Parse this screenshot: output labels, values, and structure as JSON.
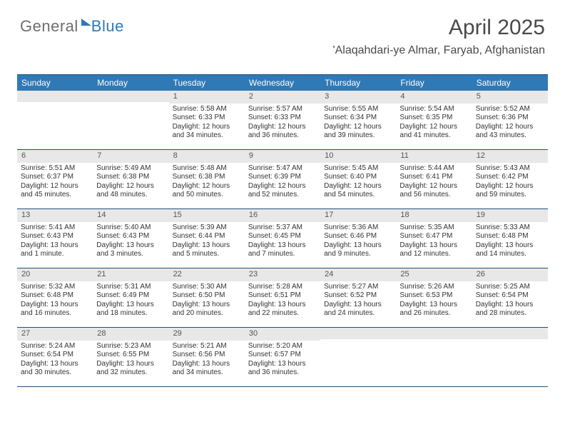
{
  "logo": {
    "part1": "General",
    "part2": "Blue"
  },
  "title": {
    "month_year": "April 2025",
    "location": "'Alaqahdari-ye Almar, Faryab, Afghanistan"
  },
  "calendar": {
    "header_bg": "#2f79b6",
    "header_fg": "#ffffff",
    "daynum_bg": "#e8e8e8",
    "border_color": "#1f4f7a",
    "weekdays": [
      "Sunday",
      "Monday",
      "Tuesday",
      "Wednesday",
      "Thursday",
      "Friday",
      "Saturday"
    ],
    "weeks": [
      [
        {
          "blank": true
        },
        {
          "blank": true
        },
        {
          "day": "1",
          "sunrise": "Sunrise: 5:58 AM",
          "sunset": "Sunset: 6:33 PM",
          "daylight1": "Daylight: 12 hours",
          "daylight2": "and 34 minutes."
        },
        {
          "day": "2",
          "sunrise": "Sunrise: 5:57 AM",
          "sunset": "Sunset: 6:33 PM",
          "daylight1": "Daylight: 12 hours",
          "daylight2": "and 36 minutes."
        },
        {
          "day": "3",
          "sunrise": "Sunrise: 5:55 AM",
          "sunset": "Sunset: 6:34 PM",
          "daylight1": "Daylight: 12 hours",
          "daylight2": "and 39 minutes."
        },
        {
          "day": "4",
          "sunrise": "Sunrise: 5:54 AM",
          "sunset": "Sunset: 6:35 PM",
          "daylight1": "Daylight: 12 hours",
          "daylight2": "and 41 minutes."
        },
        {
          "day": "5",
          "sunrise": "Sunrise: 5:52 AM",
          "sunset": "Sunset: 6:36 PM",
          "daylight1": "Daylight: 12 hours",
          "daylight2": "and 43 minutes."
        }
      ],
      [
        {
          "day": "6",
          "sunrise": "Sunrise: 5:51 AM",
          "sunset": "Sunset: 6:37 PM",
          "daylight1": "Daylight: 12 hours",
          "daylight2": "and 45 minutes."
        },
        {
          "day": "7",
          "sunrise": "Sunrise: 5:49 AM",
          "sunset": "Sunset: 6:38 PM",
          "daylight1": "Daylight: 12 hours",
          "daylight2": "and 48 minutes."
        },
        {
          "day": "8",
          "sunrise": "Sunrise: 5:48 AM",
          "sunset": "Sunset: 6:38 PM",
          "daylight1": "Daylight: 12 hours",
          "daylight2": "and 50 minutes."
        },
        {
          "day": "9",
          "sunrise": "Sunrise: 5:47 AM",
          "sunset": "Sunset: 6:39 PM",
          "daylight1": "Daylight: 12 hours",
          "daylight2": "and 52 minutes."
        },
        {
          "day": "10",
          "sunrise": "Sunrise: 5:45 AM",
          "sunset": "Sunset: 6:40 PM",
          "daylight1": "Daylight: 12 hours",
          "daylight2": "and 54 minutes."
        },
        {
          "day": "11",
          "sunrise": "Sunrise: 5:44 AM",
          "sunset": "Sunset: 6:41 PM",
          "daylight1": "Daylight: 12 hours",
          "daylight2": "and 56 minutes."
        },
        {
          "day": "12",
          "sunrise": "Sunrise: 5:43 AM",
          "sunset": "Sunset: 6:42 PM",
          "daylight1": "Daylight: 12 hours",
          "daylight2": "and 59 minutes."
        }
      ],
      [
        {
          "day": "13",
          "sunrise": "Sunrise: 5:41 AM",
          "sunset": "Sunset: 6:43 PM",
          "daylight1": "Daylight: 13 hours",
          "daylight2": "and 1 minute."
        },
        {
          "day": "14",
          "sunrise": "Sunrise: 5:40 AM",
          "sunset": "Sunset: 6:43 PM",
          "daylight1": "Daylight: 13 hours",
          "daylight2": "and 3 minutes."
        },
        {
          "day": "15",
          "sunrise": "Sunrise: 5:39 AM",
          "sunset": "Sunset: 6:44 PM",
          "daylight1": "Daylight: 13 hours",
          "daylight2": "and 5 minutes."
        },
        {
          "day": "16",
          "sunrise": "Sunrise: 5:37 AM",
          "sunset": "Sunset: 6:45 PM",
          "daylight1": "Daylight: 13 hours",
          "daylight2": "and 7 minutes."
        },
        {
          "day": "17",
          "sunrise": "Sunrise: 5:36 AM",
          "sunset": "Sunset: 6:46 PM",
          "daylight1": "Daylight: 13 hours",
          "daylight2": "and 9 minutes."
        },
        {
          "day": "18",
          "sunrise": "Sunrise: 5:35 AM",
          "sunset": "Sunset: 6:47 PM",
          "daylight1": "Daylight: 13 hours",
          "daylight2": "and 12 minutes."
        },
        {
          "day": "19",
          "sunrise": "Sunrise: 5:33 AM",
          "sunset": "Sunset: 6:48 PM",
          "daylight1": "Daylight: 13 hours",
          "daylight2": "and 14 minutes."
        }
      ],
      [
        {
          "day": "20",
          "sunrise": "Sunrise: 5:32 AM",
          "sunset": "Sunset: 6:48 PM",
          "daylight1": "Daylight: 13 hours",
          "daylight2": "and 16 minutes."
        },
        {
          "day": "21",
          "sunrise": "Sunrise: 5:31 AM",
          "sunset": "Sunset: 6:49 PM",
          "daylight1": "Daylight: 13 hours",
          "daylight2": "and 18 minutes."
        },
        {
          "day": "22",
          "sunrise": "Sunrise: 5:30 AM",
          "sunset": "Sunset: 6:50 PM",
          "daylight1": "Daylight: 13 hours",
          "daylight2": "and 20 minutes."
        },
        {
          "day": "23",
          "sunrise": "Sunrise: 5:28 AM",
          "sunset": "Sunset: 6:51 PM",
          "daylight1": "Daylight: 13 hours",
          "daylight2": "and 22 minutes."
        },
        {
          "day": "24",
          "sunrise": "Sunrise: 5:27 AM",
          "sunset": "Sunset: 6:52 PM",
          "daylight1": "Daylight: 13 hours",
          "daylight2": "and 24 minutes."
        },
        {
          "day": "25",
          "sunrise": "Sunrise: 5:26 AM",
          "sunset": "Sunset: 6:53 PM",
          "daylight1": "Daylight: 13 hours",
          "daylight2": "and 26 minutes."
        },
        {
          "day": "26",
          "sunrise": "Sunrise: 5:25 AM",
          "sunset": "Sunset: 6:54 PM",
          "daylight1": "Daylight: 13 hours",
          "daylight2": "and 28 minutes."
        }
      ],
      [
        {
          "day": "27",
          "sunrise": "Sunrise: 5:24 AM",
          "sunset": "Sunset: 6:54 PM",
          "daylight1": "Daylight: 13 hours",
          "daylight2": "and 30 minutes."
        },
        {
          "day": "28",
          "sunrise": "Sunrise: 5:23 AM",
          "sunset": "Sunset: 6:55 PM",
          "daylight1": "Daylight: 13 hours",
          "daylight2": "and 32 minutes."
        },
        {
          "day": "29",
          "sunrise": "Sunrise: 5:21 AM",
          "sunset": "Sunset: 6:56 PM",
          "daylight1": "Daylight: 13 hours",
          "daylight2": "and 34 minutes."
        },
        {
          "day": "30",
          "sunrise": "Sunrise: 5:20 AM",
          "sunset": "Sunset: 6:57 PM",
          "daylight1": "Daylight: 13 hours",
          "daylight2": "and 36 minutes."
        },
        {
          "blank": true
        },
        {
          "blank": true
        },
        {
          "blank": true
        }
      ]
    ]
  }
}
